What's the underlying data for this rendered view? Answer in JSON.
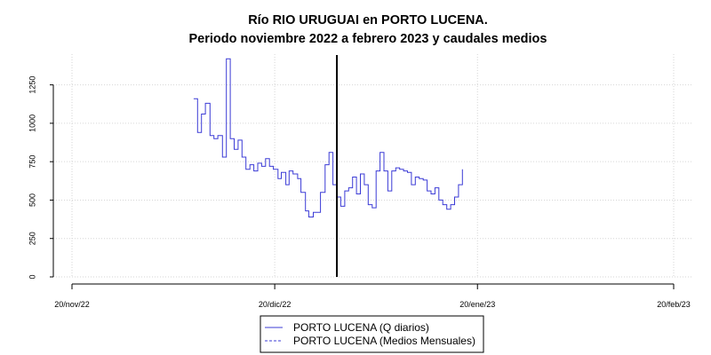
{
  "chart_data": {
    "type": "line",
    "title": "Río RIO URUGUAI en PORTO LUCENA.",
    "subtitle": "Periodo noviembre 2022 a febrero 2023 y caudales medios",
    "xlabel": "",
    "ylabel": "",
    "x_tick_labels": [
      "20/nov/22",
      "20/dic/22",
      "20/ene/23",
      "20/feb/23"
    ],
    "y_ticks": [
      0,
      250,
      500,
      750,
      1000,
      1250
    ],
    "xlim": [
      0,
      92
    ],
    "ylim": [
      0,
      1450
    ],
    "grid": true,
    "vertical_marker_day": 40.5,
    "legend_position": "bottom-center",
    "series": [
      {
        "name": "PORTO LUCENA (Q diarios)",
        "style": "solid",
        "color": "#3b3bd6",
        "x": [
          18.6,
          19.2,
          19.8,
          20.4,
          21.1,
          21.7,
          22.3,
          23,
          23.6,
          24.2,
          24.8,
          25.4,
          26,
          26.6,
          27.2,
          27.8,
          28.4,
          29,
          29.6,
          30.2,
          30.8,
          31.5,
          32,
          32.7,
          33.2,
          33.8,
          34.5,
          35,
          35.7,
          36.2,
          36.9,
          37.4,
          38,
          38.7,
          39.3,
          39.9,
          40.5,
          41.1,
          41.7,
          42.3,
          42.9,
          43.5,
          44.1,
          44.7,
          45.3,
          45.9,
          46.5,
          47.1,
          47.7,
          48.3,
          48.9,
          49.5,
          50.1,
          50.7,
          51.3,
          51.9,
          52.5,
          53.1,
          53.7,
          54.3,
          54.9,
          55.5,
          56.1,
          56.7,
          57.3,
          57.9,
          58.5,
          59.1,
          59.7
        ],
        "values": [
          1160,
          940,
          1060,
          1130,
          920,
          900,
          920,
          780,
          1420,
          900,
          830,
          890,
          780,
          700,
          730,
          690,
          740,
          720,
          770,
          720,
          700,
          640,
          680,
          600,
          690,
          670,
          640,
          550,
          430,
          390,
          420,
          420,
          550,
          730,
          810,
          600,
          520,
          460,
          560,
          580,
          650,
          540,
          670,
          600,
          470,
          450,
          690,
          810,
          690,
          560,
          690,
          710,
          700,
          690,
          680,
          600,
          650,
          640,
          630,
          560,
          540,
          580,
          500,
          470,
          440,
          470,
          520,
          600,
          700
        ],
        "note": "stepped daily discharge series (m3/s)"
      },
      {
        "name": "PORTO LUCENA (Medios Mensuales)",
        "style": "dashed",
        "color": "#3b3bd6",
        "x": [],
        "values": []
      }
    ]
  }
}
